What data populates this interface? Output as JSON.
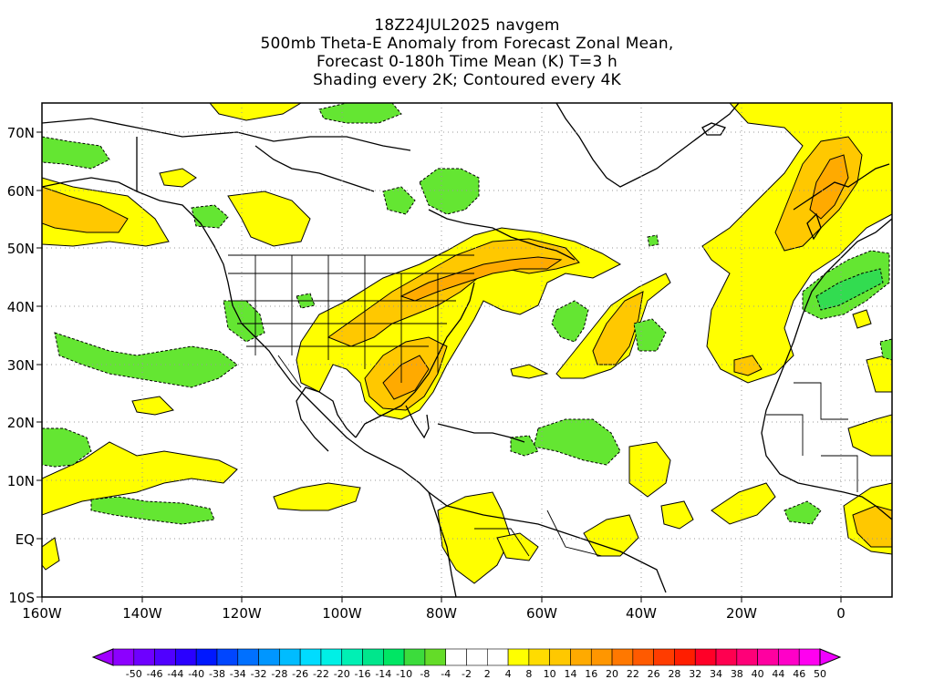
{
  "title": {
    "line1": "18Z24JUL2025 navgem",
    "line2": "500mb Theta-E Anomaly from Forecast Zonal Mean,",
    "line3": "Forecast 0-180h Time Mean (K) T=3 h",
    "line4": "Shading every 2K; Contoured every 4K"
  },
  "map": {
    "lat_labels": [
      "70N",
      "60N",
      "50N",
      "40N",
      "30N",
      "20N",
      "10N",
      "EQ",
      "10S"
    ],
    "lon_labels": [
      "160W",
      "140W",
      "120W",
      "100W",
      "80W",
      "60W",
      "40W",
      "20W",
      "0"
    ],
    "lat_range": [
      -10,
      75
    ],
    "lon_range": [
      -160,
      10
    ],
    "grid": "dotted gray"
  },
  "colorbar": {
    "labels": [
      "-50",
      "-46",
      "-44",
      "-40",
      "-38",
      "-34",
      "-32",
      "-28",
      "-26",
      "-22",
      "-20",
      "-16",
      "-14",
      "-10",
      "-8",
      "-4",
      "-2",
      "2",
      "4",
      "8",
      "10",
      "14",
      "16",
      "20",
      "22",
      "26",
      "28",
      "32",
      "34",
      "38",
      "40",
      "44",
      "46",
      "50"
    ],
    "colors": [
      "#a000ff",
      "#8c00ff",
      "#6e00ff",
      "#5000ff",
      "#2a00ff",
      "#0018ff",
      "#0046ff",
      "#0070ff",
      "#0096ff",
      "#00bcff",
      "#00dcff",
      "#00f0e6",
      "#00f0b4",
      "#00e68c",
      "#00e664",
      "#3cdc3c",
      "#64dc28",
      "#ffffff",
      "#ffffff",
      "#ffffff",
      "#ffff00",
      "#ffdc00",
      "#ffc800",
      "#ffaa00",
      "#ff9600",
      "#ff7800",
      "#ff5a00",
      "#ff3c00",
      "#ff1e00",
      "#ff0028",
      "#ff0050",
      "#ff0078",
      "#ff00a0",
      "#ff00c8",
      "#ff00f0",
      "#f000ff"
    ]
  },
  "colors": {
    "pos_weak": "#ffff00",
    "pos_mid": "#ffc800",
    "pos_strong": "#ffaa00",
    "neg_weak": "#64e632",
    "neg_mid": "#32dc50"
  }
}
